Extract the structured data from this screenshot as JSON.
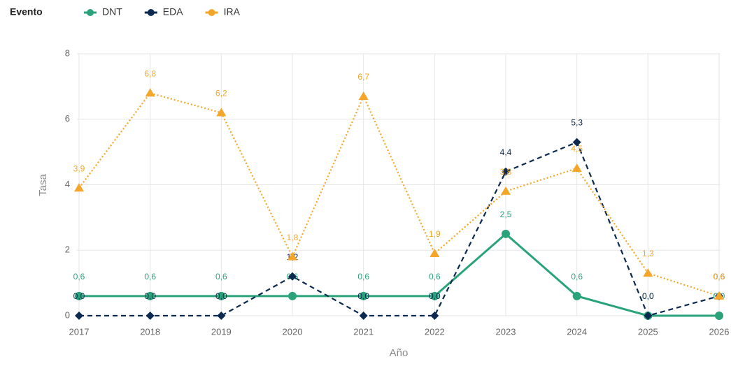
{
  "chart_data": {
    "type": "line",
    "legend_title": "Evento",
    "x_label": "Año",
    "y_label": "Tasa",
    "categories": [
      "2017",
      "2018",
      "2019",
      "2020",
      "2021",
      "2022",
      "2023",
      "2024",
      "2025",
      "2026"
    ],
    "series": [
      {
        "name": "DNT",
        "color": "#2aa37b",
        "marker": "circle",
        "dash": "solid",
        "values": [
          0.6,
          0.6,
          0.6,
          0.6,
          0.6,
          0.6,
          2.5,
          0.6,
          0.0,
          0.0
        ],
        "value_labels": [
          "0,6",
          "0,6",
          "0,6",
          "0,6",
          "0,6",
          "0,6",
          "2,5",
          "0,6",
          "0,0",
          "0,0"
        ]
      },
      {
        "name": "EDA",
        "color": "#0c2a4f",
        "marker": "diamond",
        "dash": "dashed",
        "values": [
          0.0,
          0.0,
          0.0,
          1.2,
          0.0,
          0.0,
          4.4,
          5.3,
          0.0,
          0.6
        ],
        "value_labels": [
          "0,0",
          "0,0",
          "0,0",
          "1,2",
          "0,0",
          "0,0",
          "4,4",
          "5,3",
          "0,0",
          "0,6"
        ]
      },
      {
        "name": "IRA",
        "color": "#f4a62a",
        "marker": "triangle",
        "dash": "dotted",
        "values": [
          3.9,
          6.8,
          6.2,
          1.8,
          6.7,
          1.9,
          3.8,
          4.5,
          1.3,
          0.6
        ],
        "value_labels": [
          "3,9",
          "6,8",
          "6,2",
          "1,8",
          "6,7",
          "1,9",
          "3,8",
          "4,5",
          "1,3",
          "0,6"
        ]
      }
    ],
    "ylim": [
      0,
      8
    ],
    "yticks": [
      0,
      2,
      4,
      6,
      8
    ],
    "grid": true,
    "legend": "top-left"
  }
}
